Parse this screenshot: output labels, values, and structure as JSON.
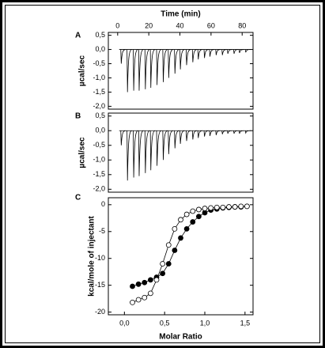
{
  "chart_data": [
    {
      "type": "thermogram",
      "label": "A",
      "x_label": "Time (min)",
      "y_label": "µcal/sec",
      "xlim": [
        -6,
        87
      ],
      "xticks": [
        0,
        20,
        40,
        60,
        80
      ],
      "ylim": [
        -2.1,
        0.6
      ],
      "yticks": [
        {
          "value": 0.5,
          "label": "0,5"
        },
        {
          "value": 0,
          "label": "0,0"
        },
        {
          "value": -0.5,
          "label": "-0,5"
        },
        {
          "value": -1,
          "label": "-1,0"
        },
        {
          "value": -1.5,
          "label": "-1,5"
        },
        {
          "value": -2,
          "label": "-2,0"
        }
      ],
      "x": [
        2,
        6,
        10,
        13.5,
        17.5,
        21,
        25,
        29,
        32.5,
        36.5,
        40,
        44,
        48,
        51.5,
        55.5,
        59,
        63,
        67,
        70.5,
        74.5,
        78,
        82
      ],
      "values": [
        -0.5,
        -1.5,
        -1.45,
        -1.45,
        -1.4,
        -1.35,
        -1.25,
        -1.15,
        -1.0,
        -0.85,
        -0.7,
        -0.55,
        -0.45,
        -0.35,
        -0.3,
        -0.25,
        -0.2,
        -0.2,
        -0.15,
        -0.15,
        -0.12,
        -0.1
      ]
    },
    {
      "type": "thermogram",
      "label": "B",
      "y_label": "µcal/sec",
      "xlim": [
        -6,
        87
      ],
      "ylim": [
        -2.1,
        0.6
      ],
      "yticks": [
        {
          "value": 0.5,
          "label": "0,5"
        },
        {
          "value": 0,
          "label": "0,0"
        },
        {
          "value": -0.5,
          "label": "-0,5"
        },
        {
          "value": -1,
          "label": "-1,0"
        },
        {
          "value": -1.5,
          "label": "-1,5"
        },
        {
          "value": -2,
          "label": "-2,0"
        }
      ],
      "x": [
        2,
        6,
        10,
        13.5,
        17.5,
        21,
        25,
        29,
        32.5,
        36.5,
        40,
        44,
        48,
        51.5,
        55.5,
        59,
        63,
        67,
        70.5,
        74.5,
        78,
        82
      ],
      "values": [
        -0.5,
        -1.7,
        -1.6,
        -1.55,
        -1.45,
        -1.35,
        -1.2,
        -1.0,
        -0.8,
        -0.6,
        -0.45,
        -0.35,
        -0.3,
        -0.25,
        -0.2,
        -0.18,
        -0.15,
        -0.12,
        -0.1,
        -0.1,
        -0.1,
        -0.08
      ]
    },
    {
      "type": "scatter",
      "label": "C",
      "x_label": "Molar Ratio",
      "y_label": "kcal/mole of injectant",
      "xlim": [
        -0.2,
        1.6
      ],
      "xticks": [
        {
          "value": 0,
          "label": "0,0"
        },
        {
          "value": 0.5,
          "label": "0,5"
        },
        {
          "value": 1,
          "label": "1,0"
        },
        {
          "value": 1.5,
          "label": "1,5"
        }
      ],
      "ylim": [
        -20.5,
        1.3
      ],
      "yticks": [
        0,
        -5,
        -10,
        -15,
        -20
      ],
      "x": [
        0.1,
        0.175,
        0.25,
        0.325,
        0.4,
        0.475,
        0.55,
        0.625,
        0.7,
        0.775,
        0.85,
        0.925,
        1.0,
        1.075,
        1.15,
        1.225,
        1.3,
        1.375,
        1.45,
        1.525
      ],
      "series": [
        {
          "marker": "filled",
          "values": [
            -15.2,
            -14.8,
            -14.5,
            -14,
            -13.5,
            -12.8,
            -11,
            -8.5,
            -6.2,
            -4.5,
            -3.2,
            -2.2,
            -1.5,
            -1.0,
            -0.8,
            -0.6,
            -0.5,
            -0.4,
            -0.4,
            -0.3
          ]
        },
        {
          "marker": "open",
          "values": [
            -18.2,
            -17.7,
            -17.3,
            -16.5,
            -14,
            -11,
            -7.5,
            -4.5,
            -2.8,
            -1.8,
            -1.2,
            -0.9,
            -0.7,
            -0.6,
            -0.5,
            -0.5,
            -0.4,
            -0.4,
            -0.3,
            -0.3
          ]
        }
      ]
    }
  ]
}
